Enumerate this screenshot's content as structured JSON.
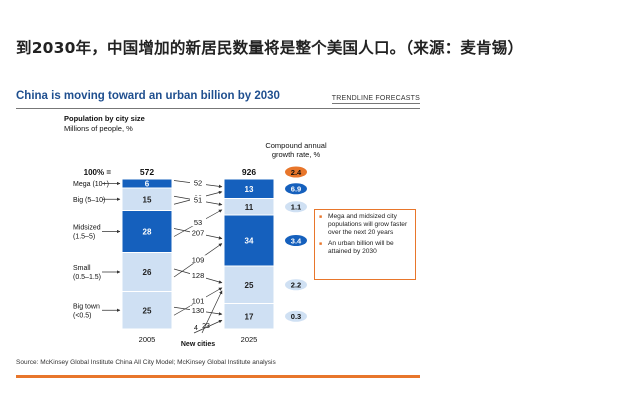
{
  "heading": "到2030年，中国增加的新居民数量将是整个美国人口。（来源：麦肯锡）",
  "exhibit": {
    "title": "China is moving toward an urban billion by 2030",
    "tag": "TRENDLINE FORECASTS",
    "source": "Source: McKinsey Global Institute China All City Model; McKinsey Global Institute analysis",
    "callout": [
      "Mega and midsized city populations will grow faster over the next 20 years",
      "An urban billion will be attained by 2030"
    ]
  },
  "chart_data": {
    "type": "bar",
    "title": "Population by city size",
    "subtitle": "Millions of people, %",
    "categories": [
      "2005",
      "2025"
    ],
    "total_prefix": "100% =",
    "totals": [
      572,
      926
    ],
    "segments": [
      {
        "name": "Mega (10+)",
        "values": [
          6,
          13
        ],
        "rate": "6.9",
        "color": "#1560bd",
        "text": "#ffffff"
      },
      {
        "name": "Big (5–10)",
        "values": [
          15,
          11
        ],
        "rate": "1.1",
        "color": "#cfe0f3",
        "text": "#222222"
      },
      {
        "name": "Midsized\n(1.5–5)",
        "values": [
          28,
          34
        ],
        "rate": "3.4",
        "color": "#1560bd",
        "text": "#ffffff"
      },
      {
        "name": "Small\n(0.5–1.5)",
        "values": [
          26,
          25
        ],
        "rate": "2.2",
        "color": "#cfe0f3",
        "text": "#222222"
      },
      {
        "name": "Big town\n(<0.5)",
        "values": [
          25,
          17
        ],
        "rate": "0.3",
        "color": "#cfe0f3",
        "text": "#222222"
      }
    ],
    "total_rate": "2.4",
    "rate_title": "Compound annual\ngrowth rate, %",
    "flow_labels": [
      "52",
      "68",
      "51",
      "53",
      "207",
      "109",
      "128",
      "101",
      "130",
      "4",
      "23"
    ],
    "new_cities_label": "New cities",
    "rate_colors": {
      "total": "#e8762b",
      "high": "#1560bd",
      "low": "#cfe0f3"
    }
  }
}
